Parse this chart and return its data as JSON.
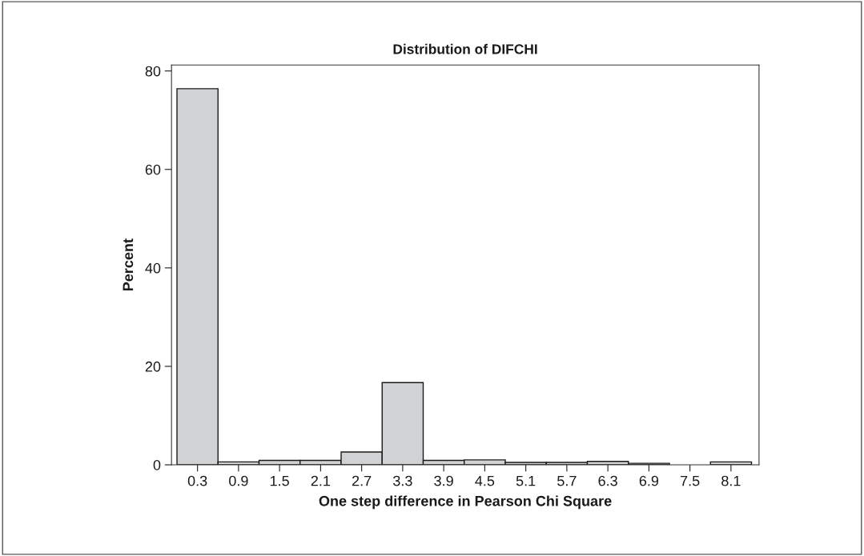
{
  "chart_data": {
    "type": "histogram",
    "title": "Distribution of DIFCHI",
    "xlabel": "One step difference in Pearson Chi Square",
    "ylabel": "Percent",
    "bins": [
      0,
      0.6,
      1.2,
      1.8,
      2.4,
      3.0,
      3.6,
      4.2,
      4.8,
      5.4,
      6.0,
      6.6,
      7.2,
      7.8,
      8.4
    ],
    "values": [
      76.4,
      0.6,
      0.9,
      0.9,
      2.6,
      16.7,
      0.9,
      1.0,
      0.5,
      0.5,
      0.7,
      0.3,
      0,
      0.6
    ],
    "color": "#d1d2d4",
    "xlim": [
      -0.08,
      8.51
    ],
    "xticks": [
      0.3,
      0.9,
      1.5,
      2.1,
      2.7,
      3.3,
      3.9,
      4.5,
      5.1,
      5.7,
      6.3,
      6.9,
      7.5,
      8.1
    ],
    "ylim": [
      0,
      81.2
    ],
    "yticks": [
      0,
      20,
      40,
      60,
      80
    ],
    "grid": false
  }
}
